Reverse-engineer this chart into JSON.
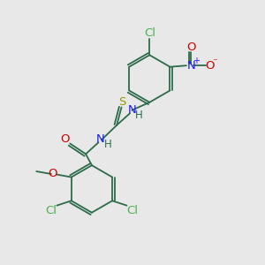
{
  "background_color": "#e8e8e8",
  "bond_color": "#2d6b4a",
  "atom_colors": {
    "Cl": "#4caf50",
    "N": "#1a1aff",
    "O": "#cc0000",
    "S": "#9a9a00",
    "C": "#2d6b4a",
    "H": "#2d6b4a"
  },
  "fig_width": 3.0,
  "fig_height": 3.0,
  "dpi": 100,
  "lw": 1.3,
  "fs": 9.5
}
